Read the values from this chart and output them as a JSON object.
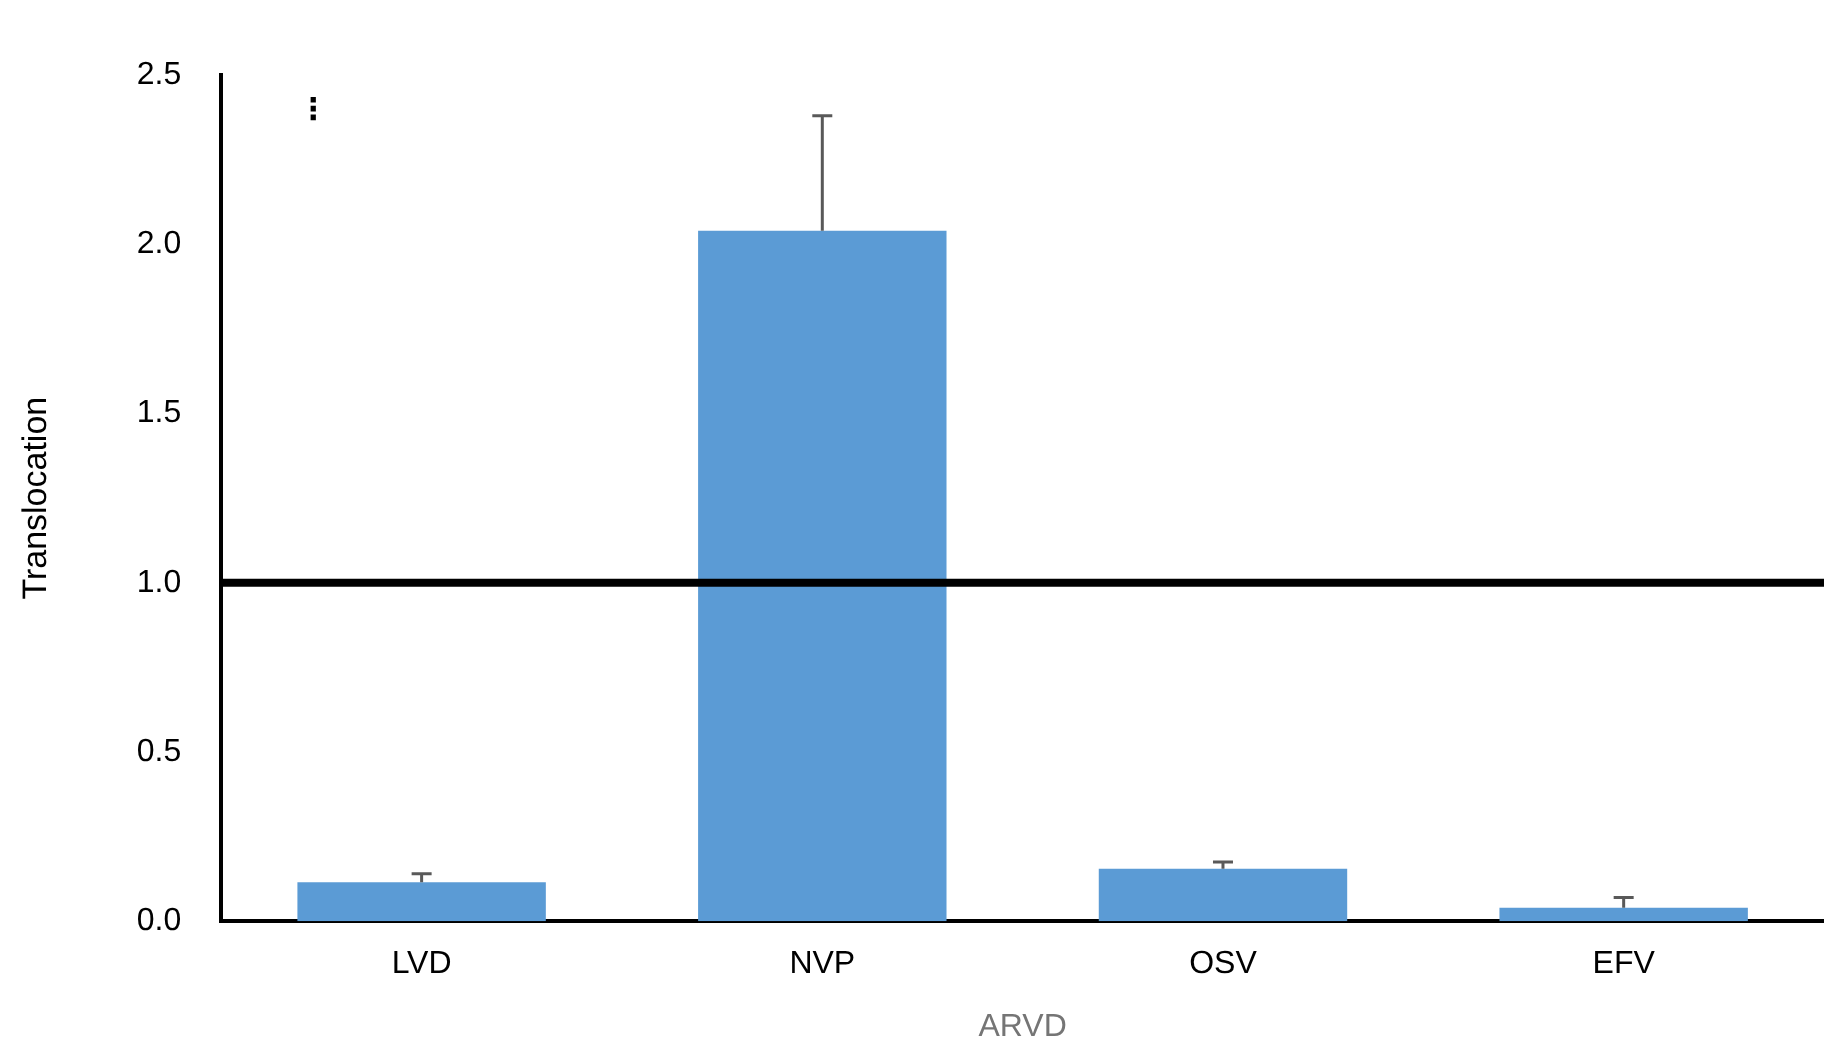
{
  "chart_data": {
    "type": "bar",
    "xlabel": "ARVD",
    "ylabel": "Translocation",
    "categories": [
      "LVD",
      "NVP",
      "OSV",
      "EFV"
    ],
    "values": [
      0.115,
      2.04,
      0.155,
      0.04
    ],
    "errors": [
      0.025,
      0.34,
      0.02,
      0.03
    ],
    "color": "#5b9bd5",
    "ylim": [
      0,
      2.5
    ],
    "yticks": [
      {
        "value": 0,
        "label": "0.0"
      },
      {
        "value": 0.5,
        "label": "0.5"
      },
      {
        "value": 1,
        "label": "1.0"
      },
      {
        "value": 1.5,
        "label": "1.5"
      },
      {
        "value": 2,
        "label": "2.0"
      },
      {
        "value": 2.5,
        "label": "2.5"
      }
    ],
    "grid": false,
    "legend": false,
    "ref_lines": [
      {
        "axis": "y",
        "value": 1,
        "color": "#000000"
      }
    ],
    "annotations": [
      "⋮"
    ]
  }
}
